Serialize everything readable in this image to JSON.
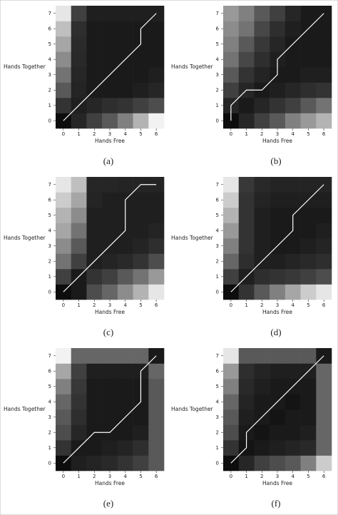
{
  "chart_data": [
    {
      "type": "heatmap",
      "caption": "(a)",
      "xlabel": "Hands Free",
      "ylabel": "Hands Together",
      "xlim": [
        -0.5,
        6.5
      ],
      "ylim": [
        -0.5,
        7.5
      ],
      "xticks": [
        0,
        1,
        2,
        3,
        4,
        5,
        6
      ],
      "yticks": [
        0,
        1,
        2,
        3,
        4,
        5,
        6,
        7
      ],
      "clim": [
        0,
        100
      ],
      "line_color": "#ffffff",
      "values": [
        [
          5,
          15,
          25,
          35,
          50,
          70,
          95
        ],
        [
          20,
          12,
          15,
          18,
          20,
          25,
          30
        ],
        [
          35,
          14,
          10,
          10,
          10,
          12,
          15
        ],
        [
          45,
          15,
          10,
          10,
          10,
          10,
          12
        ],
        [
          55,
          16,
          10,
          10,
          10,
          10,
          10
        ],
        [
          65,
          17,
          10,
          10,
          10,
          10,
          10
        ],
        [
          75,
          18,
          10,
          10,
          10,
          10,
          10
        ],
        [
          90,
          25,
          12,
          12,
          12,
          12,
          12
        ]
      ],
      "path": {
        "x": [
          0,
          5,
          5,
          6
        ],
        "y": [
          0,
          5,
          6,
          7
        ]
      }
    },
    {
      "type": "heatmap",
      "caption": "(b)",
      "xlabel": "Hands Free",
      "ylabel": "Hands Together",
      "xlim": [
        -0.5,
        6.5
      ],
      "ylim": [
        -0.5,
        7.5
      ],
      "xticks": [
        0,
        1,
        2,
        3,
        4,
        5,
        6
      ],
      "yticks": [
        0,
        1,
        2,
        3,
        4,
        5,
        6,
        7
      ],
      "clim": [
        0,
        100
      ],
      "line_color": "#ffffff",
      "values": [
        [
          5,
          15,
          25,
          35,
          50,
          60,
          70
        ],
        [
          15,
          10,
          15,
          20,
          25,
          35,
          45
        ],
        [
          25,
          15,
          10,
          12,
          15,
          18,
          20
        ],
        [
          35,
          20,
          14,
          10,
          10,
          12,
          12
        ],
        [
          45,
          28,
          18,
          12,
          10,
          10,
          10
        ],
        [
          50,
          35,
          22,
          15,
          10,
          10,
          10
        ],
        [
          55,
          45,
          28,
          18,
          12,
          10,
          10
        ],
        [
          60,
          50,
          35,
          25,
          15,
          10,
          10
        ]
      ],
      "path": {
        "x": [
          0,
          0,
          1,
          2,
          3,
          3,
          6
        ],
        "y": [
          0,
          1,
          2,
          2,
          3,
          4,
          7
        ]
      }
    },
    {
      "type": "heatmap",
      "caption": "(c)",
      "xlabel": "Hands Free",
      "ylabel": "Hands Together",
      "xlim": [
        -0.5,
        6.5
      ],
      "ylim": [
        -0.5,
        7.5
      ],
      "xticks": [
        0,
        1,
        2,
        3,
        4,
        5,
        6
      ],
      "yticks": [
        0,
        1,
        2,
        3,
        4,
        5,
        6,
        7
      ],
      "clim": [
        0,
        100
      ],
      "line_color": "#ffffff",
      "values": [
        [
          5,
          10,
          30,
          40,
          55,
          70,
          90
        ],
        [
          25,
          10,
          20,
          25,
          35,
          45,
          60
        ],
        [
          45,
          25,
          12,
          14,
          16,
          20,
          30
        ],
        [
          55,
          35,
          12,
          12,
          12,
          14,
          18
        ],
        [
          65,
          45,
          12,
          12,
          12,
          12,
          14
        ],
        [
          70,
          55,
          12,
          12,
          12,
          12,
          12
        ],
        [
          80,
          65,
          14,
          12,
          12,
          12,
          12
        ],
        [
          90,
          75,
          15,
          15,
          14,
          14,
          14
        ]
      ],
      "path": {
        "x": [
          0,
          4,
          4,
          5,
          6
        ],
        "y": [
          0,
          4,
          6,
          7,
          7
        ]
      }
    },
    {
      "type": "heatmap",
      "caption": "(d)",
      "xlabel": "Hands Free",
      "ylabel": "Hands Together",
      "xlim": [
        -0.5,
        6.5
      ],
      "ylim": [
        -0.5,
        7.5
      ],
      "xticks": [
        0,
        1,
        2,
        3,
        4,
        5,
        6
      ],
      "yticks": [
        0,
        1,
        2,
        3,
        4,
        5,
        6,
        7
      ],
      "clim": [
        0,
        100
      ],
      "line_color": "#ffffff",
      "values": [
        [
          5,
          20,
          35,
          50,
          65,
          80,
          90
        ],
        [
          25,
          12,
          18,
          20,
          22,
          25,
          30
        ],
        [
          40,
          18,
          12,
          12,
          14,
          16,
          18
        ],
        [
          50,
          20,
          12,
          10,
          10,
          12,
          14
        ],
        [
          60,
          20,
          12,
          10,
          10,
          10,
          12
        ],
        [
          70,
          20,
          12,
          10,
          10,
          10,
          10
        ],
        [
          80,
          20,
          14,
          12,
          12,
          12,
          12
        ],
        [
          90,
          22,
          16,
          14,
          14,
          14,
          14
        ]
      ],
      "path": {
        "x": [
          0,
          4,
          4,
          6
        ],
        "y": [
          0,
          4,
          5,
          7
        ]
      }
    },
    {
      "type": "heatmap",
      "caption": "(e)",
      "xlabel": "Hands Free",
      "ylabel": "Hands Together",
      "xlim": [
        -0.5,
        6.5
      ],
      "ylim": [
        -0.5,
        7.5
      ],
      "xticks": [
        0,
        1,
        2,
        3,
        4,
        5,
        6
      ],
      "yticks": [
        0,
        1,
        2,
        3,
        4,
        5,
        6,
        7
      ],
      "clim": [
        0,
        100
      ],
      "line_color": "#ffffff",
      "values": [
        [
          5,
          12,
          14,
          16,
          20,
          25,
          35
        ],
        [
          20,
          10,
          10,
          12,
          14,
          18,
          35
        ],
        [
          30,
          15,
          10,
          10,
          10,
          12,
          35
        ],
        [
          35,
          18,
          10,
          10,
          10,
          10,
          35
        ],
        [
          40,
          20,
          10,
          10,
          10,
          10,
          35
        ],
        [
          50,
          22,
          10,
          10,
          10,
          10,
          35
        ],
        [
          65,
          25,
          12,
          12,
          12,
          12,
          40
        ],
        [
          95,
          40,
          40,
          40,
          40,
          40,
          10
        ]
      ],
      "path": {
        "x": [
          0,
          2,
          3,
          5,
          5,
          6
        ],
        "y": [
          0,
          2,
          2,
          4,
          6,
          7
        ]
      }
    },
    {
      "type": "heatmap",
      "caption": "(f)",
      "xlabel": "Hands Free",
      "ylabel": "Hands Together",
      "xlim": [
        -0.5,
        6.5
      ],
      "ylim": [
        -0.5,
        7.5
      ],
      "xticks": [
        0,
        1,
        2,
        3,
        4,
        5,
        6
      ],
      "yticks": [
        0,
        1,
        2,
        3,
        4,
        5,
        6,
        7
      ],
      "clim": [
        0,
        100
      ],
      "line_color": "#ffffff",
      "values": [
        [
          5,
          15,
          25,
          30,
          35,
          50,
          80
        ],
        [
          20,
          8,
          10,
          12,
          14,
          16,
          40
        ],
        [
          30,
          10,
          8,
          10,
          10,
          12,
          40
        ],
        [
          35,
          12,
          10,
          8,
          10,
          10,
          40
        ],
        [
          40,
          14,
          10,
          10,
          8,
          10,
          40
        ],
        [
          50,
          16,
          12,
          10,
          10,
          10,
          40
        ],
        [
          60,
          18,
          14,
          12,
          12,
          12,
          40
        ],
        [
          90,
          35,
          35,
          35,
          35,
          35,
          10
        ]
      ],
      "path": {
        "x": [
          0,
          1,
          1,
          6
        ],
        "y": [
          0,
          1,
          2,
          7
        ]
      }
    }
  ]
}
